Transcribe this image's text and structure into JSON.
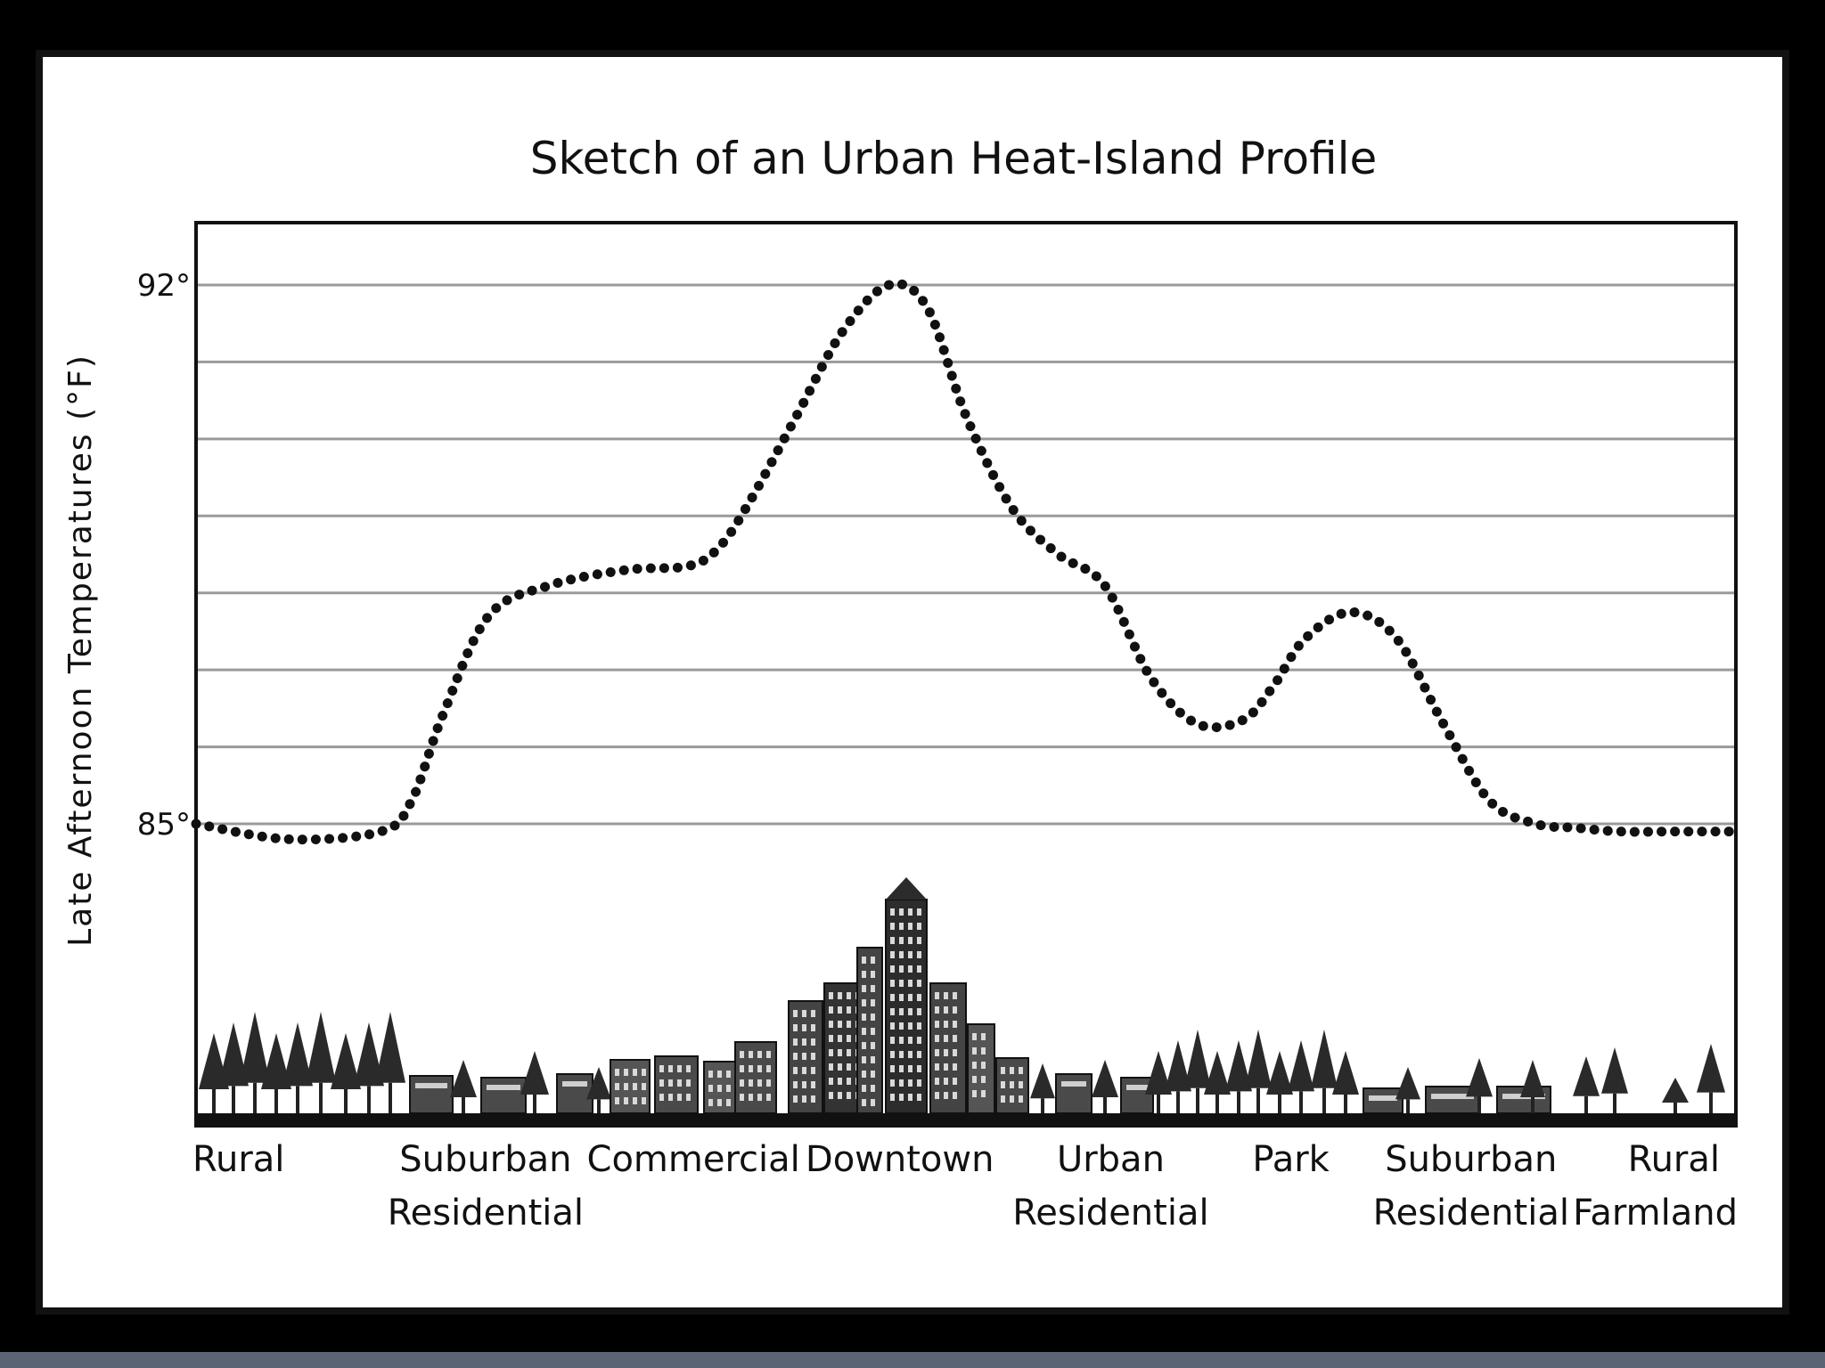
{
  "chart_data": {
    "type": "line",
    "title": "Sketch of an Urban Heat-Island Profile",
    "ylabel": "Late Afternoon Temperatures (°F)",
    "xlabel": "",
    "ylim": [
      85,
      92
    ],
    "y_tick_labels": [
      {
        "value": 92,
        "label": "92°"
      },
      {
        "value": 85,
        "label": "85°"
      }
    ],
    "gridlines": [
      85,
      86,
      87,
      88,
      89,
      90,
      91,
      92
    ],
    "grid": true,
    "line_style": "dotted",
    "categories": [
      {
        "lines": [
          "Rural"
        ],
        "x": 0.0
      },
      {
        "lines": [
          "Suburban",
          "Residential"
        ],
        "x": 1.88
      },
      {
        "lines": [
          "Commercial"
        ],
        "x": 3.23
      },
      {
        "lines": [
          "Downtown"
        ],
        "x": 4.57
      },
      {
        "lines": [
          "Urban",
          "Residential"
        ],
        "x": 5.94
      },
      {
        "lines": [
          "Park"
        ],
        "x": 7.11
      },
      {
        "lines": [
          "Suburban",
          "Residential"
        ],
        "x": 8.28
      },
      {
        "lines": [
          "Rural",
          "Farmland"
        ],
        "x": 9.6
      }
    ],
    "xlim": [
      0,
      10
    ],
    "series": [
      {
        "x": [
          0.0,
          0.6,
          1.2,
          1.4,
          1.6,
          1.9,
          2.3,
          2.8,
          3.2,
          3.4,
          3.6,
          3.9,
          4.2,
          4.5,
          4.75,
          5.0,
          5.3,
          5.6,
          5.9,
          6.2,
          6.5,
          6.8,
          7.0,
          7.2,
          7.5,
          7.8,
          8.1,
          8.4,
          8.7,
          8.95,
          9.25,
          9.6,
          10.0
        ],
        "y": [
          85.0,
          84.8,
          84.9,
          85.3,
          86.4,
          87.7,
          88.1,
          88.3,
          88.35,
          88.6,
          89.2,
          90.3,
          91.4,
          92.0,
          91.7,
          90.3,
          89.1,
          88.5,
          88.1,
          86.9,
          86.3,
          86.35,
          86.8,
          87.4,
          87.75,
          87.4,
          86.3,
          85.3,
          85.0,
          84.95,
          84.9,
          84.9,
          84.9
        ]
      }
    ],
    "illustration": "city skyline silhouette: trees in rural areas, houses in suburbs, tall buildings downtown"
  }
}
